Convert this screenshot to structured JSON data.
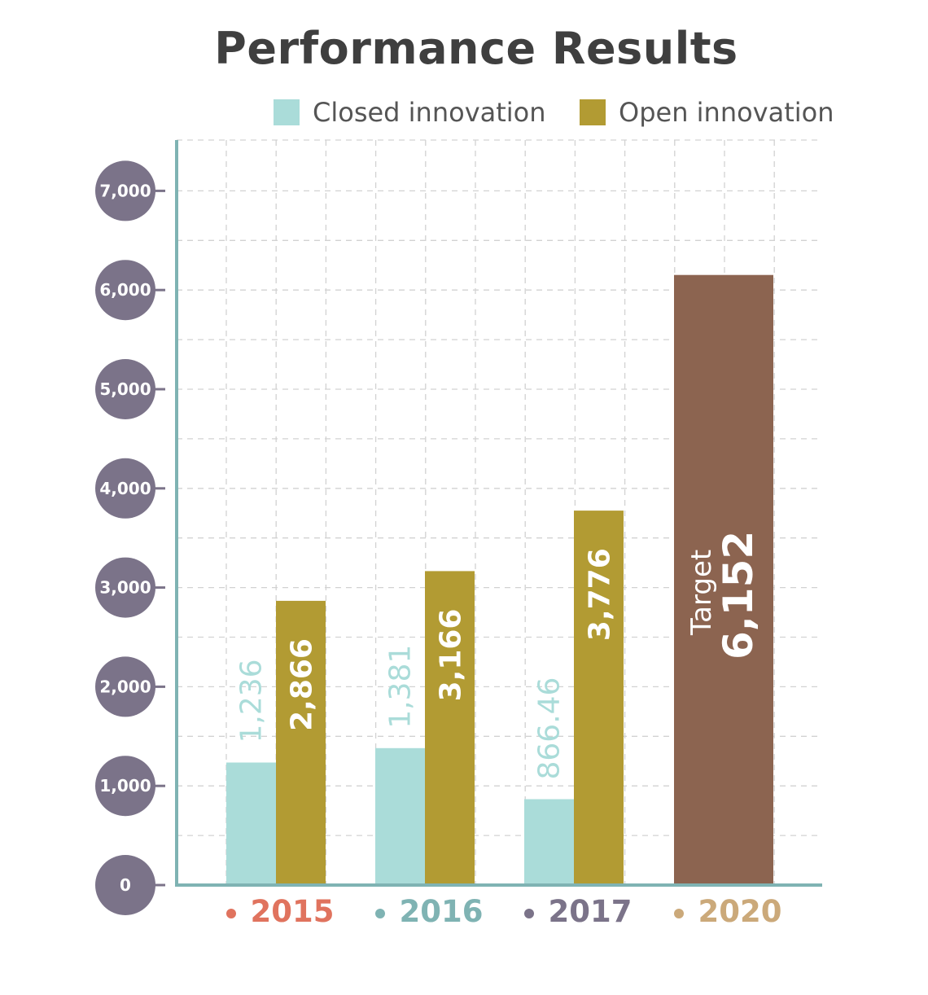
{
  "chart_data": {
    "type": "bar",
    "title": "Performance Results",
    "categories": [
      "2015",
      "2016",
      "2017",
      "2020"
    ],
    "category_colors": [
      "#e0735e",
      "#7fb3b3",
      "#7b7389",
      "#cba97a"
    ],
    "series": [
      {
        "name": "Closed innovation",
        "color": "#aadcd9",
        "label_color": "#aadcd9",
        "values": [
          1236,
          1381,
          866.46,
          null
        ],
        "labels": [
          "1,236",
          "1,381",
          "866.46",
          ""
        ]
      },
      {
        "name": "Open innovation",
        "color": "#b29b33",
        "label_color": "#ffffff",
        "values": [
          2866,
          3166,
          3776,
          null
        ],
        "labels": [
          "2,866",
          "3,166",
          "3,776",
          ""
        ]
      }
    ],
    "target": {
      "category": "2020",
      "value": 6152,
      "label": "Target",
      "value_label": "6,152",
      "color": "#8c6450"
    },
    "y_ticks": [
      0,
      1000,
      2000,
      3000,
      4000,
      5000,
      6000,
      7000
    ],
    "y_tick_labels": [
      "0",
      "1,000",
      "2,000",
      "3,000",
      "4,000",
      "5,000",
      "6,000",
      "7,000"
    ],
    "ylim": [
      0,
      7500
    ],
    "grid": true,
    "legend_position": "top-right",
    "axis_color": "#7fb3b3",
    "tick_circle_color": "#7b7389"
  }
}
